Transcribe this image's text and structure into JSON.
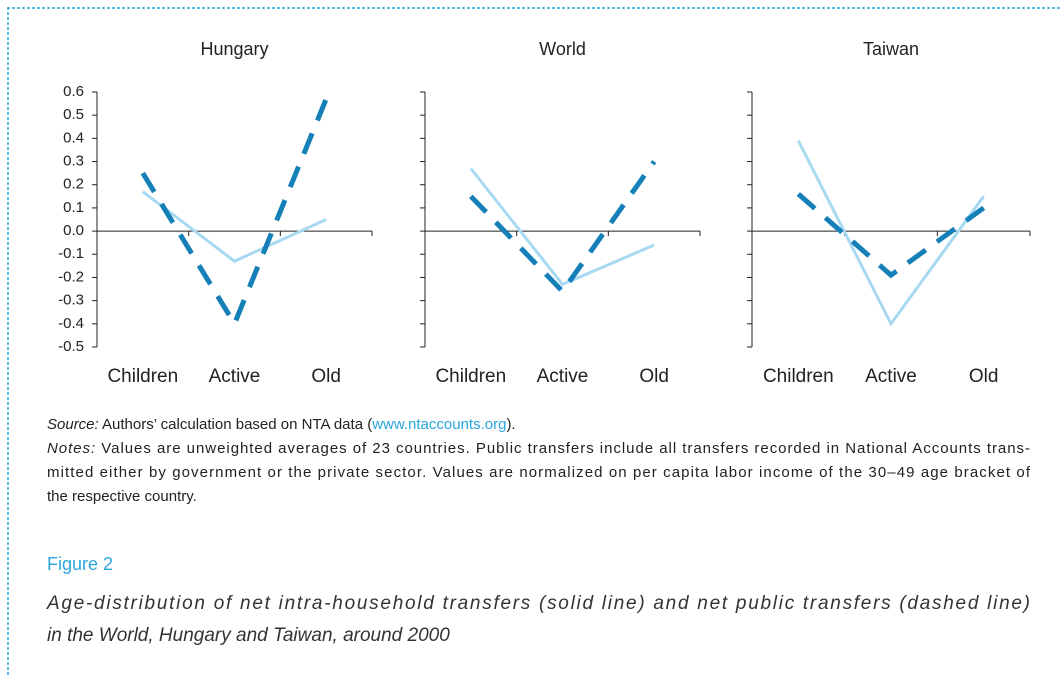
{
  "chart_data": [
    {
      "type": "line",
      "title": "Hungary",
      "categories": [
        "Children",
        "Active",
        "Old"
      ],
      "ylim": [
        -0.5,
        0.6
      ],
      "yticks": [
        0.6,
        0.5,
        0.4,
        0.3,
        0.2,
        0.1,
        {
          "value": 0,
          "label": "0.0"
        },
        -0.1,
        -0.2,
        -0.3,
        -0.4,
        -0.5
      ],
      "series": [
        {
          "color": "#a8d9f2",
          "dashed": false,
          "values": [
            0.17,
            -0.13,
            0.05
          ]
        },
        {
          "color": "#157fb8",
          "dashed": true,
          "values": [
            0.25,
            -0.4,
            0.57
          ]
        }
      ]
    },
    {
      "type": "line",
      "title": "World",
      "categories": [
        "Children",
        "Active",
        "Old"
      ],
      "ylim": [
        -0.5,
        0.6
      ],
      "series": [
        {
          "color": "#a8d9f2",
          "dashed": false,
          "values": [
            0.27,
            -0.23,
            -0.06
          ]
        },
        {
          "color": "#157fb8",
          "dashed": true,
          "values": [
            0.15,
            -0.26,
            0.3
          ]
        }
      ]
    },
    {
      "type": "line",
      "title": "Taiwan",
      "categories": [
        "Children",
        "Active",
        "Old"
      ],
      "ylim": [
        -0.5,
        0.6
      ],
      "series": [
        {
          "color": "#a8d9f2",
          "dashed": false,
          "values": [
            0.39,
            -0.4,
            0.15
          ]
        },
        {
          "color": "#157fb8",
          "dashed": true,
          "values": [
            0.16,
            -0.19,
            0.1
          ]
        }
      ]
    }
  ],
  "source": {
    "label": "Source:",
    "text": "Authors’ calculation based on NTA data (",
    "link": "www.ntaccounts.org",
    "end": ")."
  },
  "notes": {
    "label": "Notes:",
    "lines": [
      "Values are unweighted averages of 23 countries. Public transfers include all transfers recorded in National Accounts trans-",
      "mitted either by government or the private sector. Values are normalized on per capita labor income of the 30–49 age bracket of",
      "the respective country."
    ]
  },
  "figure": {
    "label": "Figure 2",
    "caption_lines": [
      "Age-distribution of net intra-household transfers (solid line) and net public transfers (dashed line)",
      "in the World, Hungary and Taiwan, around 2000"
    ]
  }
}
